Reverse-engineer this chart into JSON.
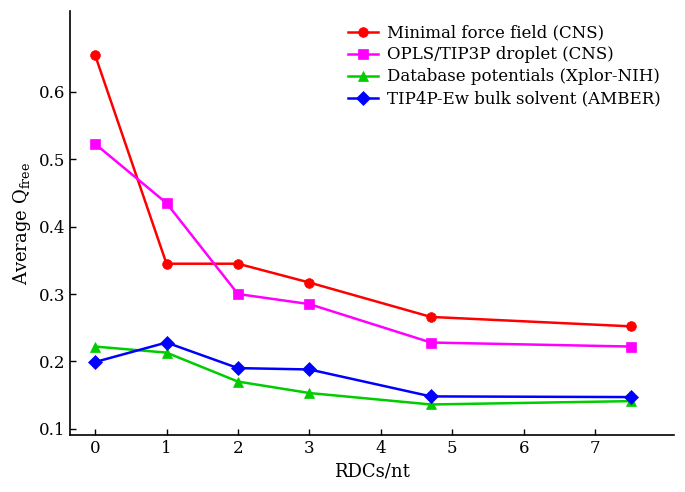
{
  "series": [
    {
      "label": "Minimal force field (CNS)",
      "color": "#ff0000",
      "marker": "o",
      "markersize": 7,
      "x": [
        0,
        1,
        2,
        3,
        4.7,
        7.5
      ],
      "y": [
        0.655,
        0.345,
        0.345,
        0.317,
        0.266,
        0.252
      ]
    },
    {
      "label": "OPLS/TIP3P droplet (CNS)",
      "color": "#ff00ff",
      "marker": "s",
      "markersize": 7,
      "x": [
        0,
        1,
        2,
        3,
        4.7,
        7.5
      ],
      "y": [
        0.523,
        0.435,
        0.3,
        0.285,
        0.228,
        0.222
      ]
    },
    {
      "label": "Database potentials (Xplor-NIH)",
      "color": "#00cc00",
      "marker": "^",
      "markersize": 7,
      "x": [
        0,
        1,
        2,
        3,
        4.7,
        7.5
      ],
      "y": [
        0.222,
        0.213,
        0.17,
        0.153,
        0.136,
        0.141
      ]
    },
    {
      "label": "TIP4P-Ew bulk solvent (AMBER)",
      "color": "#0000ff",
      "marker": "D",
      "markersize": 7,
      "x": [
        0,
        1,
        2,
        3,
        4.7,
        7.5
      ],
      "y": [
        0.199,
        0.228,
        0.19,
        0.188,
        0.148,
        0.147
      ]
    }
  ],
  "xlabel": "RDCs/nt",
  "ylabel": "Average Q",
  "ylabel_sub": "free",
  "xlim": [
    -0.35,
    8.1
  ],
  "ylim": [
    0.09,
    0.72
  ],
  "yticks": [
    0.1,
    0.2,
    0.3,
    0.4,
    0.5,
    0.6
  ],
  "xticks": [
    0,
    1,
    2,
    3,
    4,
    5,
    6,
    7
  ],
  "linewidth": 1.8,
  "background_color": "#ffffff",
  "font_family": "serif",
  "tick_fontsize": 12,
  "label_fontsize": 13,
  "legend_fontsize": 12
}
